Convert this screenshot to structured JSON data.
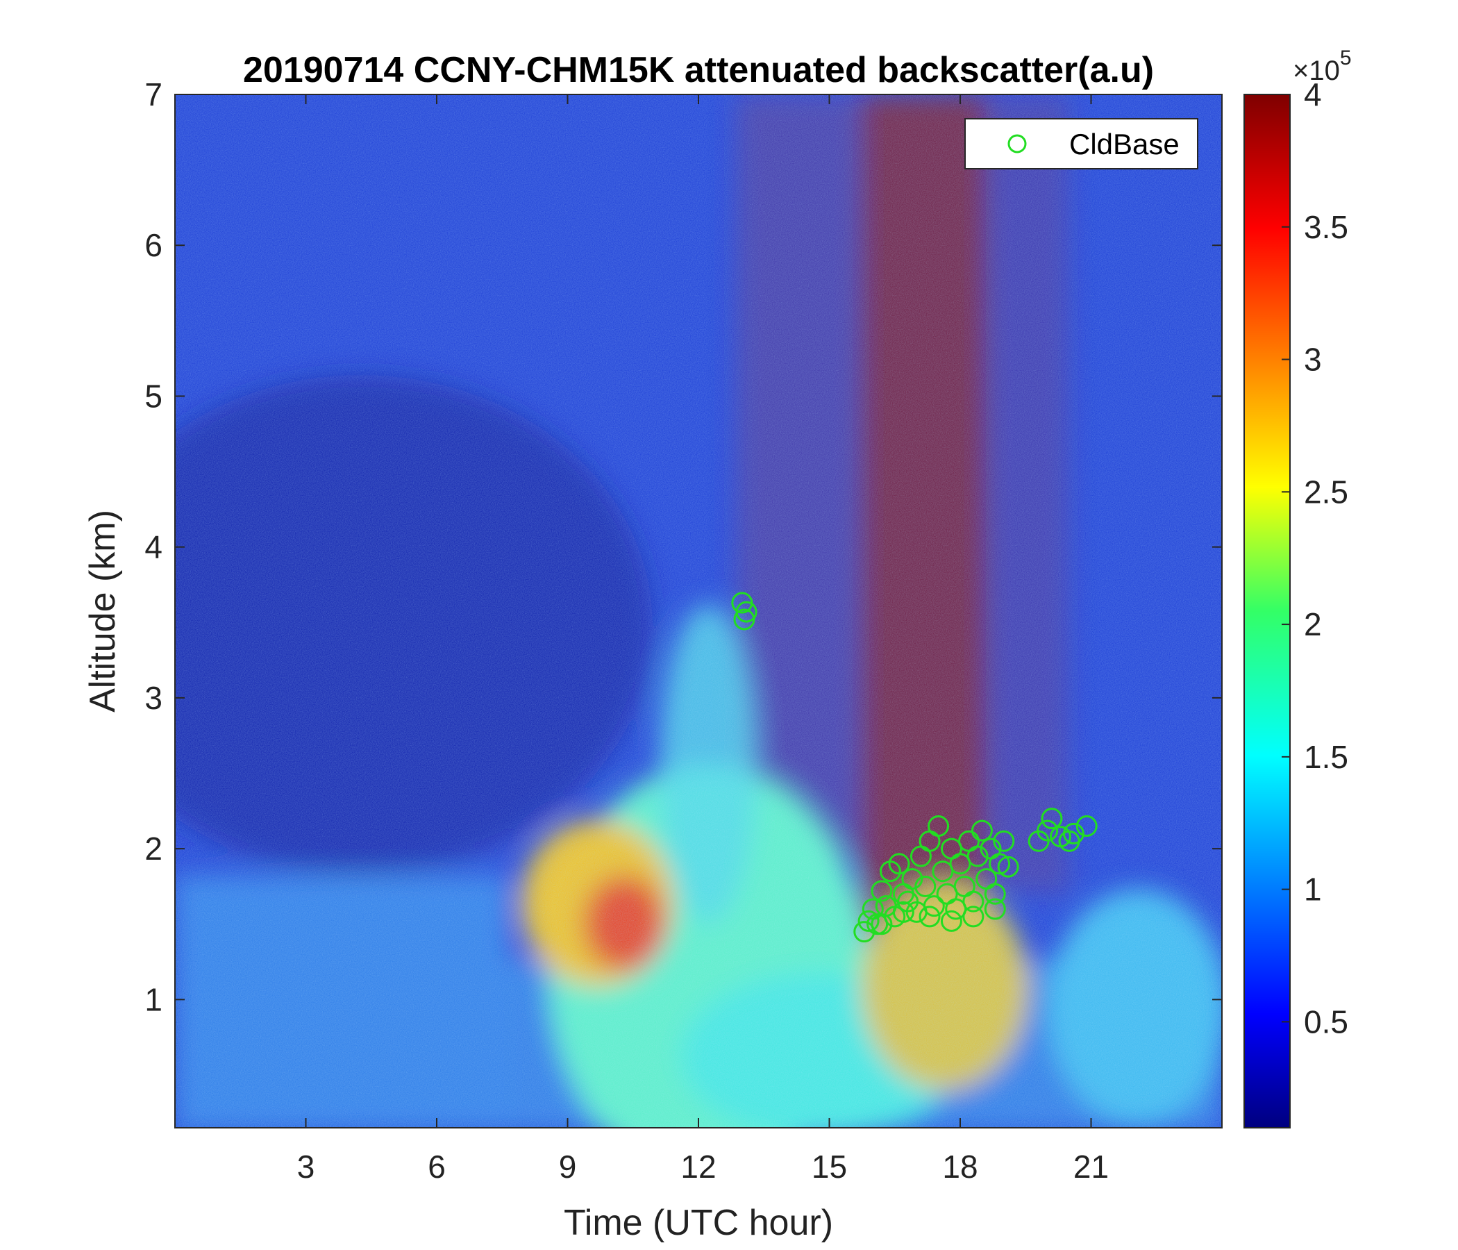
{
  "chart_data": {
    "type": "heatmap",
    "title": "20190714 CCNY-CHM15K attenuated backscatter(a.u)",
    "xlabel": "Time (UTC hour)",
    "ylabel": "Altitude (km)",
    "xlim": [
      0,
      24
    ],
    "ylim": [
      0.15,
      7
    ],
    "x_ticks": [
      3,
      6,
      9,
      12,
      15,
      18,
      21
    ],
    "x_tick_labels": [
      "3",
      "6",
      "9",
      "12",
      "15",
      "18",
      "21"
    ],
    "y_ticks": [
      1,
      2,
      3,
      4,
      5,
      6,
      7
    ],
    "y_tick_labels": [
      "1",
      "2",
      "3",
      "4",
      "5",
      "6",
      "7"
    ],
    "colorbar": {
      "colormap": "jet",
      "range": [
        0.1,
        4
      ],
      "ticks": [
        0.5,
        1,
        1.5,
        2,
        2.5,
        3,
        3.5,
        4
      ],
      "tick_labels": [
        "0.5",
        "1",
        "1.5",
        "2",
        "2.5",
        "3",
        "3.5",
        "4"
      ],
      "multiplier_prefix": "×10",
      "multiplier_exponent": "5"
    },
    "legend": {
      "placement": "top-right",
      "entries": [
        "CldBase"
      ]
    },
    "colors": {
      "cloud_base_marker": "#22dd22"
    },
    "series": [
      {
        "name": "CldBase",
        "marker": "circle",
        "points": [
          [
            13.0,
            3.63
          ],
          [
            13.1,
            3.57
          ],
          [
            13.05,
            3.52
          ],
          [
            15.8,
            1.45
          ],
          [
            15.9,
            1.52
          ],
          [
            16.0,
            1.6
          ],
          [
            16.1,
            1.5
          ],
          [
            16.2,
            1.72
          ],
          [
            16.3,
            1.62
          ],
          [
            16.4,
            1.85
          ],
          [
            16.5,
            1.55
          ],
          [
            16.6,
            1.9
          ],
          [
            16.7,
            1.7
          ],
          [
            16.8,
            1.65
          ],
          [
            16.9,
            1.8
          ],
          [
            17.0,
            1.58
          ],
          [
            17.1,
            1.95
          ],
          [
            17.2,
            1.75
          ],
          [
            17.3,
            2.05
          ],
          [
            17.4,
            1.62
          ],
          [
            17.5,
            2.15
          ],
          [
            17.6,
            1.85
          ],
          [
            17.7,
            1.7
          ],
          [
            17.8,
            2.0
          ],
          [
            17.9,
            1.6
          ],
          [
            18.0,
            1.9
          ],
          [
            18.1,
            1.75
          ],
          [
            18.2,
            2.05
          ],
          [
            18.3,
            1.65
          ],
          [
            18.4,
            1.95
          ],
          [
            18.5,
            2.12
          ],
          [
            18.6,
            1.8
          ],
          [
            18.7,
            2.0
          ],
          [
            18.8,
            1.7
          ],
          [
            18.9,
            1.9
          ],
          [
            19.0,
            2.05
          ],
          [
            19.1,
            1.88
          ],
          [
            16.2,
            1.5
          ],
          [
            16.7,
            1.58
          ],
          [
            17.3,
            1.55
          ],
          [
            17.8,
            1.52
          ],
          [
            18.3,
            1.55
          ],
          [
            18.8,
            1.6
          ],
          [
            19.8,
            2.05
          ],
          [
            20.0,
            2.12
          ],
          [
            20.1,
            2.2
          ],
          [
            20.3,
            2.08
          ],
          [
            20.5,
            2.05
          ],
          [
            20.6,
            2.1
          ],
          [
            20.9,
            2.15
          ]
        ]
      }
    ]
  }
}
